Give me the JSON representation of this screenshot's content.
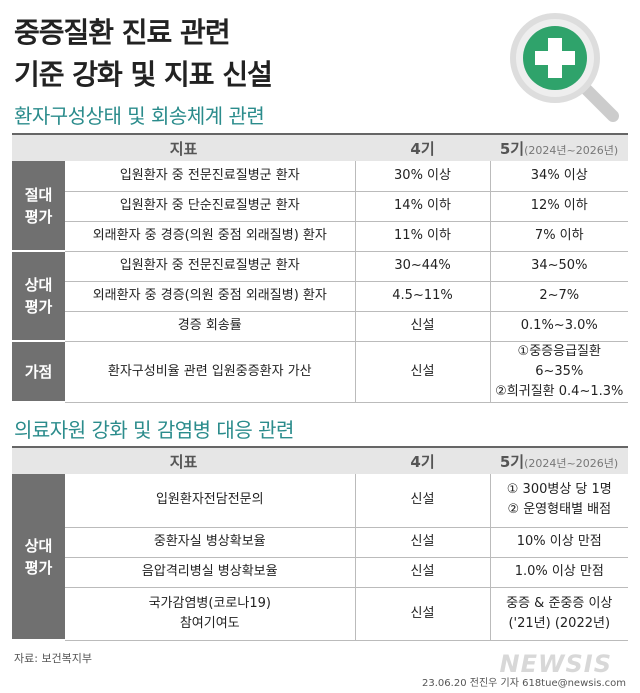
{
  "title_lines": [
    "중증질환 진료 관련",
    "기준 강화 및 지표 신설"
  ],
  "sections": [
    {
      "title": "환자구성상태 및 회송체계 관련",
      "header": {
        "indicator": "지표",
        "gen4": "4기",
        "gen5": "5기",
        "gen5_period": "(2024년~2026년)"
      },
      "groups": [
        {
          "label": [
            "절대",
            "평가"
          ],
          "rows": [
            {
              "indicator": [
                "입원환자 중 전문진료질병군 환자"
              ],
              "gen4": [
                "30% 이상"
              ],
              "gen5": [
                "34% 이상"
              ]
            },
            {
              "indicator": [
                "입원환자 중 단순진료질병군 환자"
              ],
              "gen4": [
                "14% 이하"
              ],
              "gen5": [
                "12% 이하"
              ]
            },
            {
              "indicator": [
                "외래환자 중 경증(의원 중점 외래질병) 환자"
              ],
              "gen4": [
                "11% 이하"
              ],
              "gen5": [
                "7% 이하"
              ]
            }
          ]
        },
        {
          "label": [
            "상대",
            "평가"
          ],
          "rows": [
            {
              "indicator": [
                "입원환자 중 전문진료질병군 환자"
              ],
              "gen4": [
                "30~44%"
              ],
              "gen5": [
                "34~50%"
              ]
            },
            {
              "indicator": [
                "외래환자 중 경증(의원 중점 외래질병) 환자"
              ],
              "gen4": [
                "4.5~11%"
              ],
              "gen5": [
                "2~7%"
              ]
            },
            {
              "indicator": [
                "경증 회송률"
              ],
              "gen4": [
                "신설"
              ],
              "gen5": [
                "0.1%~3.0%"
              ]
            }
          ]
        },
        {
          "label": [
            "가점"
          ],
          "rows": [
            {
              "indicator": [
                "환자구성비율 관련 입원중증환자 가산"
              ],
              "gen4": [
                "신설"
              ],
              "gen5": [
                "①중증응급질환 6~35%",
                "②희귀질환 0.4~1.3%"
              ]
            }
          ]
        }
      ]
    },
    {
      "title": "의료자원 강화 및 감염병 대응 관련",
      "header": {
        "indicator": "지표",
        "gen4": "4기",
        "gen5": "5기",
        "gen5_period": "(2024년~2026년)"
      },
      "groups": [
        {
          "label": [
            "상대",
            "평가"
          ],
          "rows": [
            {
              "indicator": [
                "입원환자전담전문의"
              ],
              "gen4": [
                "신설"
              ],
              "gen5": [
                "① 300병상 당 1명",
                "② 운영형태별 배점"
              ]
            },
            {
              "indicator": [
                "중환자실 병상확보율"
              ],
              "gen4": [
                "신설"
              ],
              "gen5": [
                "10% 이상 만점"
              ]
            },
            {
              "indicator": [
                "음압격리병실 병상확보율"
              ],
              "gen4": [
                "신설"
              ],
              "gen5": [
                "1.0% 이상 만점"
              ]
            },
            {
              "indicator": [
                "국가감염병(코로나19)",
                "참여기여도"
              ],
              "gen4": [
                "신설"
              ],
              "gen5": [
                "중증 & 준중증 이상",
                "('21년)      (2022년)"
              ]
            }
          ]
        }
      ]
    }
  ],
  "source": "자료: 보건복지부",
  "credit": "23.06.20 전진우 기자 618tue@newsis.com",
  "logo": "NEWSIS"
}
